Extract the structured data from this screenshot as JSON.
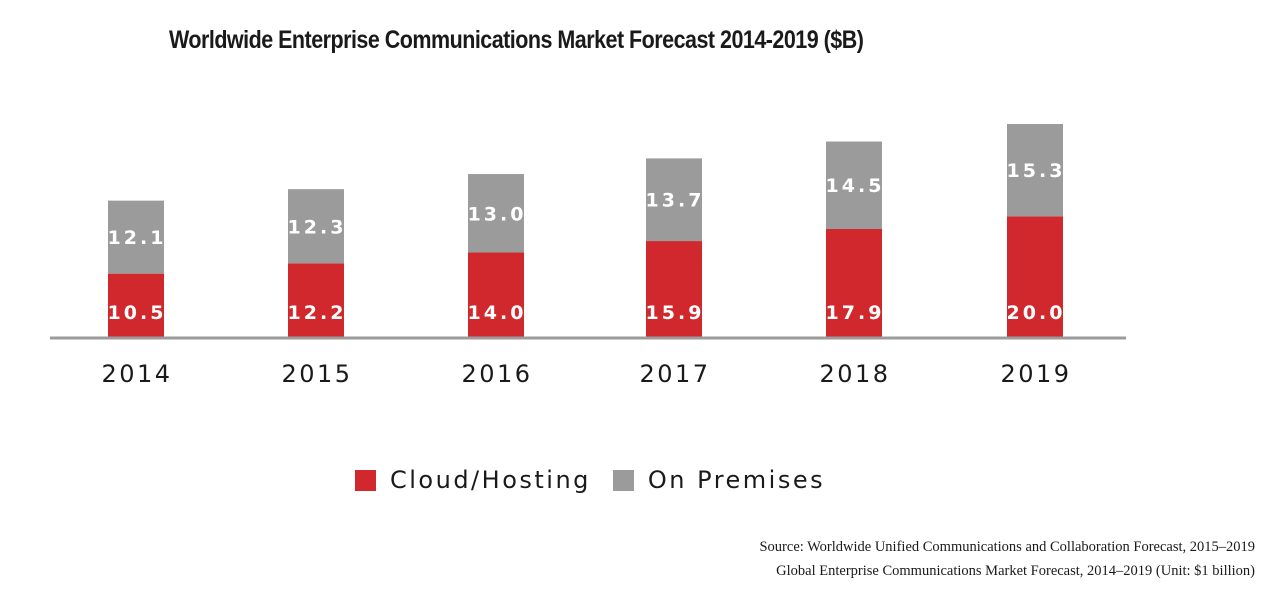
{
  "colors": {
    "cloud": "#d0282d",
    "premises": "#9b9b9b",
    "axis": "#9b9b9b"
  },
  "chart_data": {
    "type": "bar",
    "stacked": true,
    "title": "Worldwide Enterprise Communications Market Forecast 2014-2019 ($B)",
    "xlabel": "",
    "ylabel": "",
    "categories": [
      "2014",
      "2015",
      "2016",
      "2017",
      "2018",
      "2019"
    ],
    "series": [
      {
        "name": "Cloud/Hosting",
        "color": "#d0282d",
        "values": [
          10.5,
          12.2,
          14.0,
          15.9,
          17.9,
          20.0
        ]
      },
      {
        "name": "On Premises",
        "color": "#9b9b9b",
        "values": [
          12.1,
          12.3,
          13.0,
          13.7,
          14.5,
          15.3
        ]
      }
    ],
    "ylim": [
      0,
      35.3
    ],
    "grid": false,
    "y_axis_visible": false,
    "data_labels": true,
    "legend_position": "bottom-center"
  },
  "legend": [
    {
      "label": "Cloud/Hosting",
      "color": "#d0282d"
    },
    {
      "label": "On Premises",
      "color": "#9b9b9b"
    }
  ],
  "source": {
    "line1": "Source: Worldwide Unified Communications and Collaboration Forecast, 2015–2019",
    "line2": "Global Enterprise Communications Market Forecast, 2014–2019 (Unit: $1 billion)"
  }
}
